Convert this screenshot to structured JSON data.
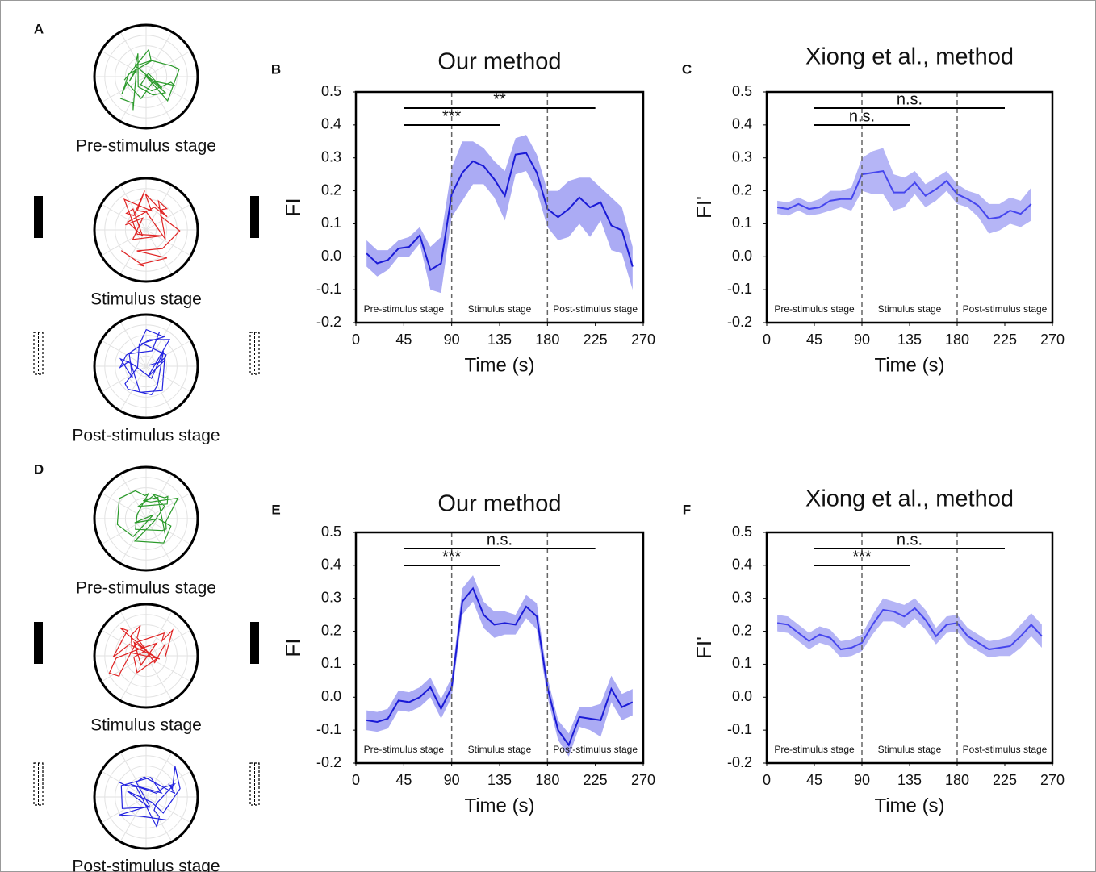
{
  "chart_data": [
    {
      "type": "line",
      "panel": "B",
      "title": "Our method",
      "xlabel": "Time (s)",
      "ylabel": "FI",
      "xlim": [
        0,
        270
      ],
      "ylim": [
        -0.2,
        0.5
      ],
      "xticks": [
        0,
        45,
        90,
        135,
        180,
        225,
        270
      ],
      "yticks": [
        -0.2,
        -0.1,
        {
          "value": 0,
          "label": "0.0"
        },
        0.1,
        0.2,
        0.3,
        0.4,
        0.5
      ],
      "color": "#1a1ad6",
      "band_color": "#9c9cf2",
      "x": [
        10,
        20,
        30,
        40,
        50,
        60,
        70,
        80,
        90,
        100,
        110,
        120,
        130,
        140,
        150,
        160,
        170,
        180,
        190,
        200,
        210,
        220,
        230,
        240,
        250,
        260
      ],
      "values": [
        0.01,
        -0.02,
        -0.01,
        0.025,
        0.03,
        0.065,
        -0.04,
        -0.02,
        0.19,
        0.255,
        0.29,
        0.275,
        0.235,
        0.185,
        0.31,
        0.315,
        0.255,
        0.145,
        0.12,
        0.145,
        0.18,
        0.15,
        0.165,
        0.095,
        0.08,
        -0.03
      ],
      "upper": [
        0.05,
        0.02,
        0.02,
        0.05,
        0.06,
        0.09,
        0.03,
        0.06,
        0.27,
        0.35,
        0.35,
        0.33,
        0.29,
        0.26,
        0.36,
        0.37,
        0.31,
        0.2,
        0.2,
        0.23,
        0.24,
        0.24,
        0.21,
        0.18,
        0.15,
        0.03
      ],
      "lower": [
        -0.03,
        -0.06,
        -0.04,
        0.0,
        0.0,
        0.04,
        -0.1,
        -0.11,
        0.12,
        0.17,
        0.22,
        0.22,
        0.18,
        0.11,
        0.25,
        0.26,
        0.2,
        0.09,
        0.05,
        0.06,
        0.1,
        0.06,
        0.11,
        0.02,
        0.01,
        -0.1
      ],
      "boundaries": [
        90,
        180
      ],
      "stages": [
        "Pre-stimulus stage",
        "Stimulus stage",
        "Post-stimulus stage"
      ],
      "significance": [
        {
          "from": 45,
          "to": 135,
          "label": "***"
        },
        {
          "from": 45,
          "to": 225,
          "label": "**"
        }
      ]
    },
    {
      "type": "line",
      "panel": "C",
      "title": "Xiong et al., method",
      "xlabel": "Time (s)",
      "ylabel": "FI'",
      "xlim": [
        0,
        270
      ],
      "ylim": [
        -0.2,
        0.5
      ],
      "xticks": [
        0,
        45,
        90,
        135,
        180,
        225,
        270
      ],
      "yticks": [
        -0.2,
        -0.1,
        {
          "value": 0,
          "label": "0.0"
        },
        0.1,
        0.2,
        0.3,
        0.4,
        0.5
      ],
      "color": "#4646ee",
      "band_color": "#a8a8f4",
      "x": [
        10,
        20,
        30,
        40,
        50,
        60,
        70,
        80,
        90,
        100,
        110,
        120,
        130,
        140,
        150,
        160,
        170,
        180,
        190,
        200,
        210,
        220,
        230,
        240,
        250
      ],
      "values": [
        0.15,
        0.145,
        0.16,
        0.145,
        0.15,
        0.17,
        0.175,
        0.175,
        0.25,
        0.255,
        0.26,
        0.195,
        0.195,
        0.225,
        0.185,
        0.205,
        0.23,
        0.19,
        0.175,
        0.155,
        0.115,
        0.12,
        0.14,
        0.13,
        0.16
      ],
      "upper": [
        0.17,
        0.165,
        0.18,
        0.165,
        0.175,
        0.2,
        0.2,
        0.21,
        0.3,
        0.32,
        0.33,
        0.25,
        0.24,
        0.26,
        0.22,
        0.24,
        0.26,
        0.22,
        0.2,
        0.19,
        0.16,
        0.16,
        0.18,
        0.17,
        0.21
      ],
      "lower": [
        0.13,
        0.125,
        0.14,
        0.125,
        0.13,
        0.14,
        0.15,
        0.14,
        0.2,
        0.19,
        0.19,
        0.14,
        0.15,
        0.19,
        0.15,
        0.17,
        0.2,
        0.16,
        0.15,
        0.12,
        0.07,
        0.08,
        0.1,
        0.09,
        0.11
      ],
      "boundaries": [
        90,
        180
      ],
      "stages": [
        "Pre-stimulus stage",
        "Stimulus stage",
        "Post-stimulus stage"
      ],
      "significance": [
        {
          "from": 45,
          "to": 135,
          "label": "n.s."
        },
        {
          "from": 45,
          "to": 225,
          "label": "n.s."
        }
      ]
    },
    {
      "type": "line",
      "panel": "E",
      "title": "Our method",
      "xlabel": "Time (s)",
      "ylabel": "FI",
      "xlim": [
        0,
        270
      ],
      "ylim": [
        -0.2,
        0.5
      ],
      "xticks": [
        0,
        45,
        90,
        135,
        180,
        225,
        270
      ],
      "yticks": [
        -0.2,
        -0.1,
        {
          "value": 0,
          "label": "0.0"
        },
        0.1,
        0.2,
        0.3,
        0.4,
        0.5
      ],
      "color": "#1a1ad6",
      "band_color": "#9c9cf2",
      "x": [
        10,
        20,
        30,
        40,
        50,
        60,
        70,
        80,
        90,
        100,
        110,
        120,
        130,
        140,
        150,
        160,
        170,
        180,
        190,
        200,
        210,
        220,
        230,
        240,
        250,
        260
      ],
      "values": [
        -0.07,
        -0.075,
        -0.065,
        -0.01,
        -0.015,
        0,
        0.03,
        -0.035,
        0.03,
        0.29,
        0.33,
        0.25,
        0.22,
        0.225,
        0.22,
        0.275,
        0.245,
        0.03,
        -0.1,
        -0.145,
        -0.06,
        -0.065,
        -0.07,
        0.025,
        -0.03,
        -0.015
      ],
      "upper": [
        -0.04,
        -0.045,
        -0.035,
        0.02,
        0.015,
        0.03,
        0.06,
        -0.005,
        0.06,
        0.33,
        0.37,
        0.29,
        0.26,
        0.26,
        0.25,
        0.31,
        0.285,
        0.06,
        -0.07,
        -0.11,
        -0.03,
        -0.03,
        -0.02,
        0.065,
        0.01,
        0.025
      ],
      "lower": [
        -0.1,
        -0.105,
        -0.095,
        -0.04,
        -0.045,
        -0.03,
        0.0,
        -0.065,
        0.0,
        0.25,
        0.29,
        0.21,
        0.18,
        0.19,
        0.19,
        0.24,
        0.205,
        0.0,
        -0.13,
        -0.18,
        -0.09,
        -0.1,
        -0.12,
        -0.015,
        -0.07,
        -0.055
      ],
      "boundaries": [
        90,
        180
      ],
      "stages": [
        "Pre-stimulus stage",
        "Stimulus stage",
        "Post-stimulus stage"
      ],
      "significance": [
        {
          "from": 45,
          "to": 135,
          "label": "***"
        },
        {
          "from": 45,
          "to": 225,
          "label": "n.s."
        }
      ]
    },
    {
      "type": "line",
      "panel": "F",
      "title": "Xiong et al., method",
      "xlabel": "Time (s)",
      "ylabel": "FI'",
      "xlim": [
        0,
        270
      ],
      "ylim": [
        -0.2,
        0.5
      ],
      "xticks": [
        0,
        45,
        90,
        135,
        180,
        225,
        270
      ],
      "yticks": [
        -0.2,
        -0.1,
        {
          "value": 0,
          "label": "0.0"
        },
        0.1,
        0.2,
        0.3,
        0.4,
        0.5
      ],
      "color": "#4646ee",
      "band_color": "#a8a8f4",
      "x": [
        10,
        20,
        30,
        40,
        50,
        60,
        70,
        80,
        90,
        100,
        110,
        120,
        130,
        140,
        150,
        160,
        170,
        180,
        190,
        200,
        210,
        220,
        230,
        240,
        250,
        260
      ],
      "values": [
        0.225,
        0.22,
        0.195,
        0.17,
        0.19,
        0.18,
        0.145,
        0.15,
        0.165,
        0.22,
        0.265,
        0.26,
        0.245,
        0.27,
        0.235,
        0.185,
        0.22,
        0.225,
        0.185,
        0.165,
        0.145,
        0.15,
        0.155,
        0.185,
        0.22,
        0.185
      ],
      "upper": [
        0.25,
        0.245,
        0.22,
        0.195,
        0.215,
        0.205,
        0.17,
        0.175,
        0.19,
        0.25,
        0.3,
        0.29,
        0.28,
        0.3,
        0.265,
        0.21,
        0.245,
        0.25,
        0.21,
        0.19,
        0.17,
        0.175,
        0.185,
        0.22,
        0.255,
        0.22
      ],
      "lower": [
        0.2,
        0.195,
        0.17,
        0.145,
        0.165,
        0.155,
        0.12,
        0.125,
        0.14,
        0.19,
        0.23,
        0.23,
        0.21,
        0.24,
        0.205,
        0.16,
        0.195,
        0.2,
        0.16,
        0.14,
        0.12,
        0.125,
        0.125,
        0.15,
        0.185,
        0.15
      ],
      "boundaries": [
        90,
        180
      ],
      "stages": [
        "Pre-stimulus stage",
        "Stimulus stage",
        "Post-stimulus stage"
      ],
      "significance": [
        {
          "from": 45,
          "to": 135,
          "label": "***"
        },
        {
          "from": 45,
          "to": 225,
          "label": "n.s."
        }
      ]
    }
  ],
  "trajectories": [
    {
      "panel": "A",
      "captions": [
        "Pre-stimulus stage",
        "Stimulus stage",
        "Post-stimulus stage"
      ]
    },
    {
      "panel": "D",
      "captions": [
        "Pre-stimulus stage",
        "Stimulus stage",
        "Post-stimulus stage"
      ]
    }
  ]
}
